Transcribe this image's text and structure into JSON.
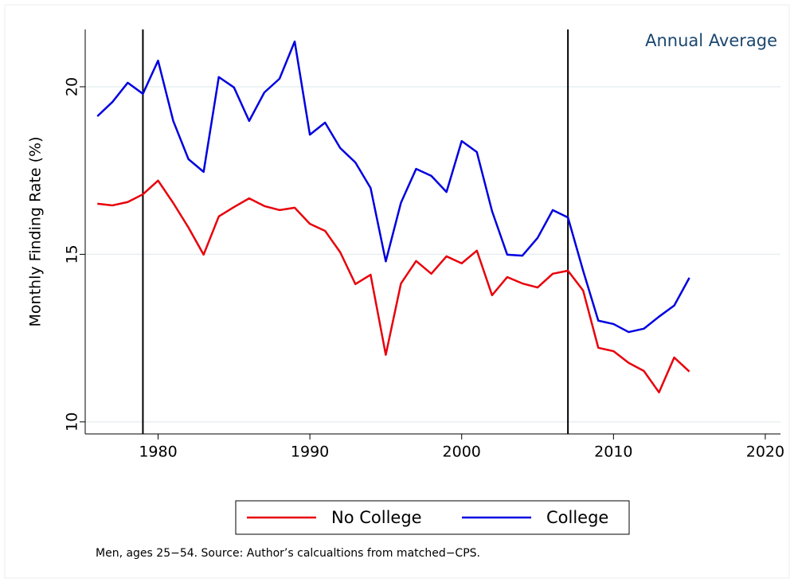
{
  "chart_data": {
    "type": "line",
    "annotation": "Annual Average",
    "y_label": "Monthly Finding Rate (%)",
    "note": "Men, ages 25−54. Source: Author’s calcualtions from matched−CPS.",
    "x": [
      1976,
      1977,
      1978,
      1979,
      1980,
      1981,
      1982,
      1983,
      1984,
      1985,
      1986,
      1987,
      1988,
      1989,
      1990,
      1991,
      1992,
      1993,
      1994,
      1995,
      1996,
      1997,
      1998,
      1999,
      2000,
      2001,
      2002,
      2003,
      2004,
      2005,
      2006,
      2007,
      2008,
      2009,
      2010,
      2011,
      2012,
      2013,
      2014,
      2015
    ],
    "series": [
      {
        "name": "No College",
        "color": "#e8000b",
        "values": [
          16.51,
          16.46,
          16.56,
          16.79,
          17.2,
          16.53,
          15.8,
          14.99,
          16.13,
          16.41,
          16.67,
          16.44,
          16.32,
          16.39,
          15.91,
          15.7,
          15.06,
          14.11,
          14.39,
          12.0,
          14.13,
          14.8,
          14.42,
          14.94,
          14.73,
          15.11,
          13.78,
          14.32,
          14.13,
          14.01,
          14.42,
          14.51,
          13.92,
          12.21,
          12.11,
          11.76,
          11.52,
          10.88,
          11.92,
          11.5
        ]
      },
      {
        "name": "College",
        "color": "#0000e0",
        "values": [
          19.12,
          19.55,
          20.12,
          19.79,
          20.78,
          18.98,
          17.84,
          17.46,
          20.29,
          19.98,
          18.98,
          19.83,
          20.24,
          21.35,
          18.57,
          18.93,
          18.17,
          17.74,
          16.98,
          14.79,
          16.54,
          17.55,
          17.34,
          16.86,
          18.38,
          18.05,
          16.29,
          14.99,
          14.96,
          15.49,
          16.32,
          16.1,
          14.51,
          13.02,
          12.92,
          12.68,
          12.78,
          13.14,
          13.47,
          14.3
        ]
      }
    ],
    "vlines": [
      1979,
      2007
    ],
    "xlim": [
      1975.2,
      2021
    ],
    "xticks": [
      1980,
      1990,
      2000,
      2010,
      2020
    ],
    "ylim": [
      9.64,
      21.71
    ],
    "yticks": [
      10,
      15,
      20
    ],
    "grid": true,
    "legend": "bottom"
  }
}
